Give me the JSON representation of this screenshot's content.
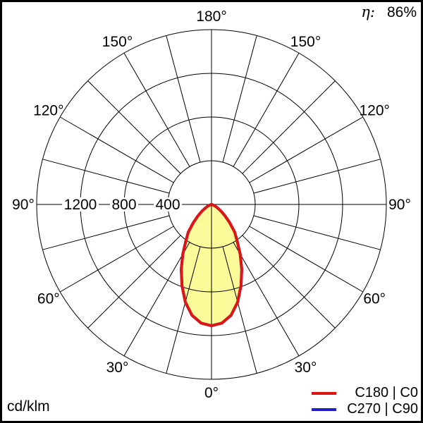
{
  "header": {
    "eta_label": "η:",
    "eta_value": "86%"
  },
  "footer": {
    "unit": "cd/klm"
  },
  "colors": {
    "curve_c0": "#dd1515",
    "curve_c90": "#1f1fcc",
    "beam_fill": "#fbfb9a",
    "grid": "#000000"
  },
  "chart_data": {
    "type": "polar",
    "subtype": "luminaire-intensity-distribution",
    "title": "",
    "unit": "cd/klm",
    "efficiency_percent": 86,
    "grid_on": true,
    "r_axis": {
      "ring_values": [
        400,
        800,
        1200,
        1600
      ],
      "labeled_ticks": [
        1200,
        800,
        400
      ],
      "max": 1600
    },
    "angle_step_deg": 15,
    "angle_labels": [
      {
        "angle": 180,
        "text": "180°"
      },
      {
        "angle": 150,
        "text": "150°"
      },
      {
        "angle": -150,
        "text": "150°"
      },
      {
        "angle": 120,
        "text": "120°"
      },
      {
        "angle": -120,
        "text": "120°"
      },
      {
        "angle": 90,
        "text": "90°"
      },
      {
        "angle": -90,
        "text": "90°"
      },
      {
        "angle": 60,
        "text": "60°"
      },
      {
        "angle": -60,
        "text": "60°"
      },
      {
        "angle": 30,
        "text": "30°"
      },
      {
        "angle": -30,
        "text": "30°"
      },
      {
        "angle": 0,
        "text": "0°"
      }
    ],
    "legend_position": "bottom-right",
    "series": [
      {
        "name": "C180 | C0",
        "color": "#dd1515",
        "fill": "#fbfb9a",
        "symmetric": true,
        "gamma_deg": [
          0,
          5,
          10,
          15,
          20,
          25,
          30,
          35,
          40,
          45,
          50,
          55,
          60,
          65,
          70,
          75,
          80,
          85,
          90
        ],
        "values_cd_per_klm": [
          1110,
          1090,
          1030,
          925,
          790,
          655,
          525,
          410,
          330,
          235,
          160,
          105,
          65,
          38,
          20,
          9,
          3,
          1,
          0
        ]
      },
      {
        "name": "C270 | C90",
        "color": "#1f1fcc",
        "fill": null,
        "symmetric": true,
        "gamma_deg": [
          0,
          5,
          10,
          15,
          20,
          25,
          30,
          35,
          40,
          45,
          50,
          55,
          60,
          65,
          70,
          75,
          80,
          85,
          90
        ],
        "values_cd_per_klm": [
          1110,
          1090,
          1030,
          925,
          790,
          655,
          525,
          410,
          330,
          235,
          160,
          105,
          65,
          38,
          20,
          9,
          3,
          1,
          0
        ]
      }
    ]
  }
}
